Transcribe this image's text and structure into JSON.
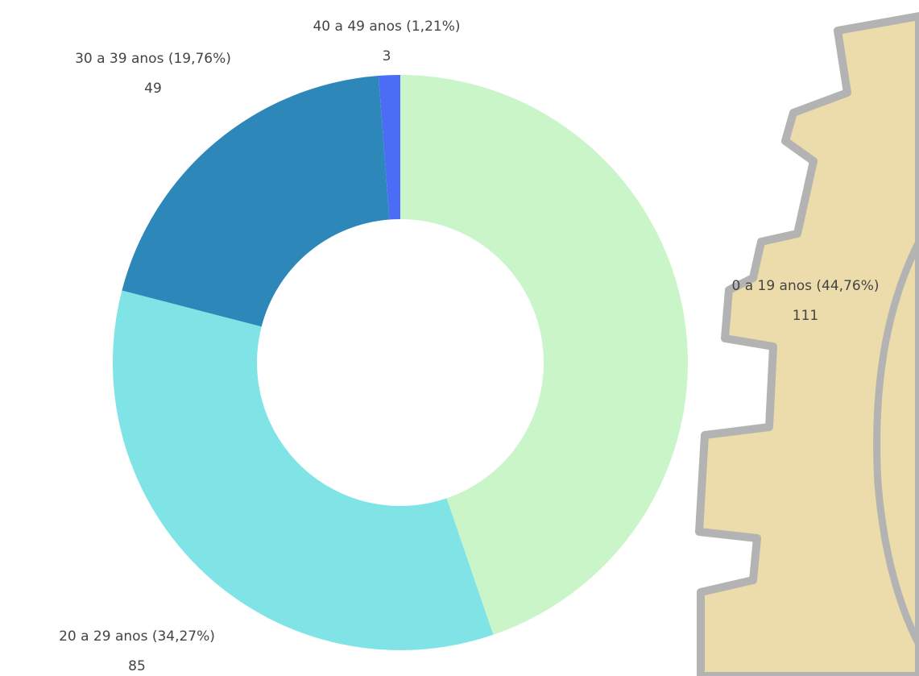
{
  "chart_data": {
    "type": "donut",
    "categories": [
      "0 a 19 anos (44,76%)",
      "20 a 29 anos (34,27%)",
      "30 a 39 anos (19,76%)",
      "40 a 49 anos (1,21%)"
    ],
    "values": [
      111,
      85,
      49,
      3
    ],
    "colors": [
      "#c9f5c9",
      "#80e4e6",
      "#2d87b9",
      "#4b6df6"
    ]
  }
}
